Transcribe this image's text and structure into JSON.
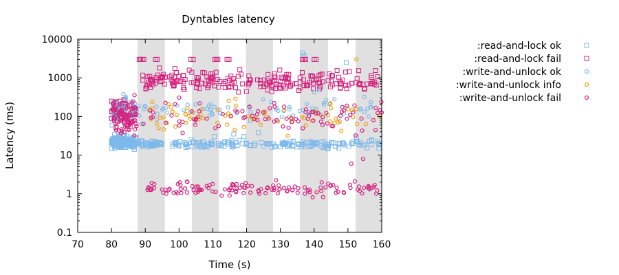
{
  "chart_data": {
    "type": "scatter",
    "title": "Dyntables latency",
    "xlabel": "Time (s)",
    "ylabel": "Latency (ms)",
    "xlim": [
      70,
      160
    ],
    "ylim": [
      0.1,
      10000
    ],
    "yscale": "log",
    "xticks": [
      "70",
      "80",
      "90",
      "100",
      "110",
      "120",
      "130",
      "140",
      "150",
      "160"
    ],
    "yticks": [
      "0.1",
      "1",
      "10",
      "100",
      "1000",
      "10000"
    ],
    "grid": false,
    "legend_position": "outside-right",
    "shaded_intervals": [
      [
        87.7,
        95.8
      ],
      [
        103.8,
        111.8
      ],
      [
        119.8,
        127.8
      ],
      [
        135.8,
        144.1
      ],
      [
        152.3,
        160
      ]
    ],
    "series": [
      {
        "name": ":read-and-lock ok",
        "marker": "square",
        "color": "#7cb8ea",
        "clusters": [
          {
            "x": [
              80,
              87.5
            ],
            "center": 21,
            "spread": 0.07,
            "count": 200
          },
          {
            "x": [
              88,
              95.5
            ],
            "center": 19.5,
            "spread": 0.04,
            "count": 40
          },
          {
            "x": [
              97.5,
              160
            ],
            "center": 19,
            "spread": 0.05,
            "count": 160
          }
        ],
        "points": [
          {
            "x": 80.2,
            "y": 60
          },
          {
            "x": 82.5,
            "y": 32
          },
          {
            "x": 110.5,
            "y": 30
          },
          {
            "x": 116.2,
            "y": 35
          },
          {
            "x": 119.2,
            "y": 30
          },
          {
            "x": 121.2,
            "y": 80
          },
          {
            "x": 123.5,
            "y": 38
          },
          {
            "x": 136.5,
            "y": 4400
          },
          {
            "x": 137.0,
            "y": 3800
          },
          {
            "x": 149.5,
            "y": 2500
          },
          {
            "x": 152.5,
            "y": 28
          },
          {
            "x": 157.0,
            "y": 25
          }
        ]
      },
      {
        "name": ":read-and-lock fail",
        "marker": "square",
        "color": "#d4207d",
        "clusters": [
          {
            "x": [
              80,
              87
            ],
            "center": 120,
            "spread": 0.2,
            "count": 70
          },
          {
            "x": [
              89,
              160
            ],
            "center": 850,
            "spread": 0.13,
            "count": 230
          }
        ],
        "points": [
          {
            "x": 88.2,
            "y": 3000
          },
          {
            "x": 88.6,
            "y": 3000
          },
          {
            "x": 89.1,
            "y": 3000
          },
          {
            "x": 89.6,
            "y": 3000
          },
          {
            "x": 93.0,
            "y": 3000
          },
          {
            "x": 93.5,
            "y": 3000
          },
          {
            "x": 103.5,
            "y": 3000
          },
          {
            "x": 104.2,
            "y": 3000
          },
          {
            "x": 110.6,
            "y": 3000
          },
          {
            "x": 111.0,
            "y": 3000
          },
          {
            "x": 111.5,
            "y": 3000
          },
          {
            "x": 114.2,
            "y": 3000
          },
          {
            "x": 114.8,
            "y": 3000
          },
          {
            "x": 136.5,
            "y": 3000
          },
          {
            "x": 137.0,
            "y": 3000
          },
          {
            "x": 137.5,
            "y": 3000
          },
          {
            "x": 140.0,
            "y": 3000
          },
          {
            "x": 140.6,
            "y": 3000
          }
        ]
      },
      {
        "name": ":write-and-unlock ok",
        "marker": "circle",
        "color": "#7cb8ea",
        "clusters": [
          {
            "x": [
              80,
              87.5
            ],
            "center": 140,
            "spread": 0.15,
            "count": 40
          },
          {
            "x": [
              88,
              160
            ],
            "center": 150,
            "spread": 0.12,
            "count": 70
          }
        ],
        "points": [
          {
            "x": 83.5,
            "y": 380
          },
          {
            "x": 84.2,
            "y": 300
          },
          {
            "x": 140.0,
            "y": 420
          },
          {
            "x": 141.5,
            "y": 500
          },
          {
            "x": 146.0,
            "y": 280
          }
        ]
      },
      {
        "name": ":write-and-unlock info",
        "marker": "circle",
        "color": "#f0a010",
        "clusters": [
          {
            "x": [
              91,
              160
            ],
            "center": 100,
            "spread": 0.22,
            "count": 75
          }
        ],
        "points": [
          {
            "x": 152.5,
            "y": 3000
          },
          {
            "x": 144.8,
            "y": 220
          }
        ]
      },
      {
        "name": ":write-and-unlock fail",
        "marker": "circle",
        "color": "#d4207d",
        "clusters": [
          {
            "x": [
              80,
              87.5
            ],
            "center": 90,
            "spread": 0.25,
            "count": 70
          },
          {
            "x": [
              88.5,
              160
            ],
            "center": 100,
            "spread": 0.2,
            "count": 90
          },
          {
            "x": [
              90.5,
              160
            ],
            "center": 1.35,
            "spread": 0.09,
            "count": 130
          }
        ],
        "points": [
          {
            "x": 80.5,
            "y": 220
          },
          {
            "x": 151.0,
            "y": 6
          },
          {
            "x": 154.5,
            "y": 8
          }
        ]
      }
    ]
  }
}
